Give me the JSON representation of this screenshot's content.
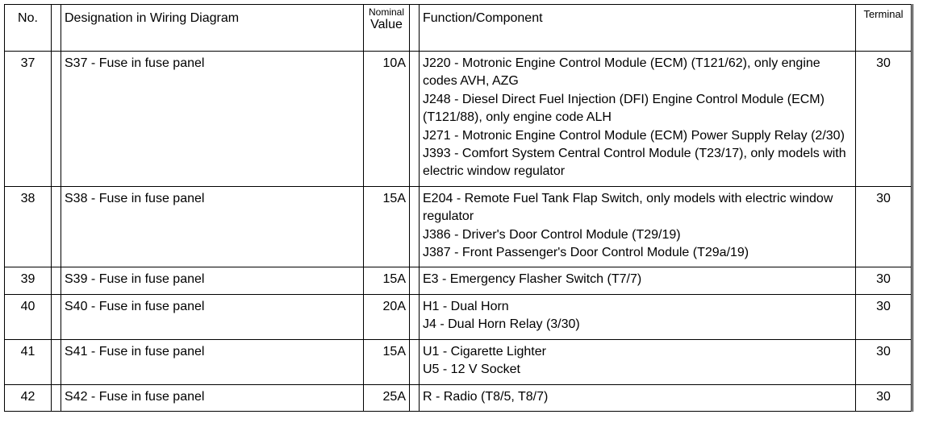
{
  "header": {
    "no": "No.",
    "designation": "Designation in Wiring Diagram",
    "nominal": "Nominal",
    "value": "Value",
    "function": "Function/Component",
    "terminal": "Terminal"
  },
  "rows": [
    {
      "no": "37",
      "designation": "S37 - Fuse in fuse panel",
      "value": "10A",
      "functions": [
        "J220 - Motronic Engine Control Module (ECM) (T121/62), only engine codes AVH, AZG",
        "J248 - Diesel Direct Fuel Injection (DFI) Engine Control Module (ECM) (T121/88), only engine code ALH",
        "J271 - Motronic Engine Control Module (ECM) Power Supply Relay (2/30)",
        "J393 - Comfort System Central Control Module (T23/17), only models with electric window regulator"
      ],
      "terminal": "30"
    },
    {
      "no": "38",
      "designation": "S38 - Fuse in fuse panel",
      "value": "15A",
      "functions": [
        "E204 - Remote Fuel Tank Flap Switch, only models with electric window regulator",
        "J386 - Driver's Door Control Module (T29/19)",
        "J387 - Front Passenger's Door Control Module (T29a/19)"
      ],
      "terminal": "30"
    },
    {
      "no": "39",
      "designation": "S39 - Fuse in fuse panel",
      "value": "15A",
      "functions": [
        "E3 - Emergency Flasher Switch (T7/7)"
      ],
      "terminal": "30"
    },
    {
      "no": "40",
      "designation": "S40 - Fuse in fuse panel",
      "value": "20A",
      "functions": [
        "H1 - Dual Horn",
        "J4 - Dual Horn Relay (3/30)"
      ],
      "terminal": "30"
    },
    {
      "no": "41",
      "designation": "S41 - Fuse in fuse panel",
      "value": "15A",
      "functions": [
        "U1 - Cigarette Lighter",
        "U5 - 12 V Socket"
      ],
      "terminal": "30"
    },
    {
      "no": "42",
      "designation": "S42 - Fuse in fuse panel",
      "value": "25A",
      "functions": [
        "R - Radio (T8/5, T8/7)"
      ],
      "terminal": "30"
    }
  ]
}
